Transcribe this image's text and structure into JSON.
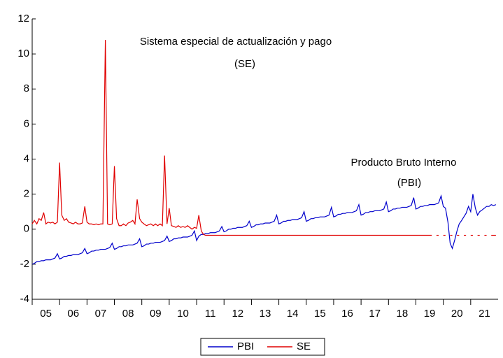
{
  "chart_data": {
    "type": "line",
    "annotations": [
      "Sistema especial de actualización y pago",
      "(SE)",
      "Producto Bruto Interno",
      "(PBI)"
    ],
    "x": [
      2005,
      2005.08,
      2005.17,
      2005.25,
      2005.33,
      2005.42,
      2005.5,
      2005.58,
      2005.67,
      2005.75,
      2005.83,
      2005.92,
      2006,
      2006.08,
      2006.17,
      2006.25,
      2006.33,
      2006.42,
      2006.5,
      2006.58,
      2006.67,
      2006.75,
      2006.83,
      2006.92,
      2007,
      2007.08,
      2007.17,
      2007.25,
      2007.33,
      2007.42,
      2007.5,
      2007.58,
      2007.67,
      2007.75,
      2007.83,
      2007.92,
      2008,
      2008.08,
      2008.17,
      2008.25,
      2008.33,
      2008.42,
      2008.5,
      2008.58,
      2008.67,
      2008.75,
      2008.83,
      2008.92,
      2009,
      2009.08,
      2009.17,
      2009.25,
      2009.33,
      2009.42,
      2009.5,
      2009.58,
      2009.67,
      2009.75,
      2009.83,
      2009.92,
      2010,
      2010.08,
      2010.17,
      2010.25,
      2010.33,
      2010.42,
      2010.5,
      2010.58,
      2010.67,
      2010.75,
      2010.83,
      2010.92,
      2011,
      2011.08,
      2011.17,
      2011.25,
      2011.33,
      2011.42,
      2011.5,
      2011.58,
      2011.67,
      2011.75,
      2011.83,
      2011.92,
      2012,
      2012.08,
      2012.17,
      2012.25,
      2012.33,
      2012.42,
      2012.5,
      2012.58,
      2012.67,
      2012.75,
      2012.83,
      2012.92,
      2013,
      2013.08,
      2013.17,
      2013.25,
      2013.33,
      2013.42,
      2013.5,
      2013.58,
      2013.67,
      2013.75,
      2013.83,
      2013.92,
      2014,
      2014.08,
      2014.17,
      2014.25,
      2014.33,
      2014.42,
      2014.5,
      2014.58,
      2014.67,
      2014.75,
      2014.83,
      2014.92,
      2015,
      2015.08,
      2015.17,
      2015.25,
      2015.33,
      2015.42,
      2015.5,
      2015.58,
      2015.67,
      2015.75,
      2015.83,
      2015.92,
      2016,
      2016.08,
      2016.17,
      2016.25,
      2016.33,
      2016.42,
      2016.5,
      2016.58,
      2016.67,
      2016.75,
      2016.83,
      2016.92,
      2017,
      2017.08,
      2017.17,
      2017.25,
      2017.33,
      2017.42,
      2017.5,
      2017.58,
      2017.67,
      2017.75,
      2017.83,
      2017.92,
      2018,
      2018.08,
      2018.17,
      2018.25,
      2018.33,
      2018.42,
      2018.5,
      2018.58,
      2018.67,
      2018.75,
      2018.83,
      2018.92,
      2019,
      2019.08,
      2019.17,
      2019.25,
      2019.33,
      2019.42,
      2019.5,
      2019.58,
      2019.67,
      2019.75,
      2019.83,
      2019.92,
      2020,
      2020.08,
      2020.17,
      2020.25,
      2020.33,
      2020.42,
      2020.5,
      2020.58,
      2020.67,
      2020.75,
      2020.83,
      2020.92,
      2021,
      2021.08,
      2021.17,
      2021.25,
      2021.33,
      2021.42,
      2021.5,
      2021.58,
      2021.67,
      2021.75,
      2021.83,
      2021.92
    ],
    "series": [
      {
        "name": "PBI",
        "color": "#0000cc",
        "values": [
          -2.0,
          -1.95,
          -1.85,
          -1.85,
          -1.8,
          -1.8,
          -1.75,
          -1.75,
          -1.75,
          -1.7,
          -1.65,
          -1.4,
          -1.7,
          -1.65,
          -1.55,
          -1.55,
          -1.5,
          -1.5,
          -1.45,
          -1.45,
          -1.45,
          -1.4,
          -1.35,
          -1.1,
          -1.4,
          -1.35,
          -1.25,
          -1.25,
          -1.2,
          -1.2,
          -1.15,
          -1.15,
          -1.15,
          -1.1,
          -1.05,
          -0.8,
          -1.15,
          -1.1,
          -1.0,
          -1.0,
          -0.95,
          -0.95,
          -0.9,
          -0.9,
          -0.9,
          -0.85,
          -0.8,
          -0.55,
          -1.0,
          -0.95,
          -0.85,
          -0.85,
          -0.8,
          -0.8,
          -0.75,
          -0.75,
          -0.75,
          -0.7,
          -0.65,
          -0.4,
          -0.7,
          -0.65,
          -0.55,
          -0.55,
          -0.5,
          -0.5,
          -0.45,
          -0.45,
          -0.45,
          -0.4,
          -0.35,
          -0.1,
          -0.65,
          -0.4,
          -0.3,
          -0.3,
          -0.25,
          -0.25,
          -0.2,
          -0.2,
          -0.2,
          -0.15,
          -0.1,
          0.15,
          -0.15,
          -0.1,
          0,
          0,
          0.05,
          0.05,
          0.1,
          0.1,
          0.1,
          0.15,
          0.2,
          0.45,
          0.1,
          0.15,
          0.25,
          0.25,
          0.3,
          0.3,
          0.35,
          0.35,
          0.35,
          0.4,
          0.45,
          0.8,
          0.3,
          0.35,
          0.45,
          0.45,
          0.5,
          0.5,
          0.55,
          0.55,
          0.55,
          0.6,
          0.65,
          1.0,
          0.45,
          0.5,
          0.6,
          0.6,
          0.65,
          0.65,
          0.7,
          0.7,
          0.7,
          0.75,
          0.8,
          1.25,
          0.7,
          0.75,
          0.85,
          0.85,
          0.9,
          0.9,
          0.95,
          0.95,
          0.95,
          1.0,
          1.05,
          1.4,
          0.8,
          0.85,
          0.95,
          0.95,
          1.0,
          1.0,
          1.05,
          1.05,
          1.05,
          1.1,
          1.15,
          1.55,
          1.0,
          1.05,
          1.15,
          1.15,
          1.2,
          1.2,
          1.25,
          1.25,
          1.25,
          1.3,
          1.35,
          1.8,
          1.15,
          1.2,
          1.3,
          1.3,
          1.35,
          1.35,
          1.4,
          1.4,
          1.4,
          1.45,
          1.5,
          1.9,
          1.3,
          1.2,
          0.4,
          -0.8,
          -1.1,
          -0.6,
          -0.1,
          0.3,
          0.5,
          0.7,
          0.9,
          1.3,
          1.0,
          2.0,
          1.2,
          0.8,
          1.0,
          1.1,
          1.2,
          1.3,
          1.3,
          1.4,
          1.35,
          1.4
        ]
      },
      {
        "name": "SE",
        "color": "#e00000",
        "values": [
          0.3,
          0.5,
          0.3,
          0.6,
          0.5,
          0.95,
          0.3,
          0.4,
          0.35,
          0.4,
          0.3,
          0.4,
          3.8,
          0.8,
          0.5,
          0.6,
          0.4,
          0.35,
          0.3,
          0.4,
          0.3,
          0.3,
          0.35,
          1.3,
          0.4,
          0.3,
          0.3,
          0.25,
          0.3,
          0.25,
          0.3,
          0.3,
          10.8,
          0.3,
          0.25,
          0.3,
          3.6,
          0.6,
          0.2,
          0.2,
          0.3,
          0.2,
          0.35,
          0.4,
          0.5,
          0.3,
          1.7,
          0.6,
          0.4,
          0.3,
          0.2,
          0.25,
          0.3,
          0.2,
          0.3,
          0.2,
          0.3,
          0.2,
          4.2,
          0.3,
          1.2,
          0.2,
          0.15,
          0.1,
          0.2,
          0.1,
          0.15,
          0.1,
          0.2,
          0.1,
          0.0,
          0.1,
          0.05,
          0.8,
          -0.1,
          -0.3,
          -0.35,
          -0.35,
          -0.35,
          -0.35,
          -0.35,
          -0.35,
          -0.35,
          -0.35,
          -0.35,
          -0.35,
          -0.35,
          -0.35,
          -0.35,
          -0.35,
          -0.35,
          -0.35,
          -0.35,
          -0.35,
          -0.35,
          -0.35,
          -0.35,
          -0.35,
          -0.35,
          -0.35,
          -0.35,
          -0.35,
          -0.35,
          -0.35,
          -0.35,
          -0.35,
          -0.35,
          -0.35,
          -0.35,
          -0.35,
          -0.35,
          -0.35,
          -0.35,
          -0.35,
          -0.35,
          -0.35,
          -0.35,
          -0.35,
          -0.35,
          -0.35,
          -0.35,
          -0.35,
          -0.35,
          -0.35,
          -0.35,
          -0.35,
          -0.35,
          -0.35,
          -0.35,
          -0.35,
          -0.35,
          -0.35,
          -0.35,
          -0.35,
          -0.35,
          -0.35,
          -0.35,
          -0.35,
          -0.35,
          -0.35,
          -0.35,
          -0.35,
          -0.35,
          -0.35,
          -0.35,
          -0.35,
          -0.35,
          -0.35,
          -0.35,
          -0.35,
          -0.35,
          -0.35,
          -0.35,
          -0.35,
          -0.35,
          -0.35,
          -0.35,
          -0.35,
          -0.35,
          -0.35,
          -0.35,
          -0.35,
          -0.35,
          -0.35,
          -0.35,
          -0.35,
          -0.35,
          -0.35,
          -0.35,
          -0.35,
          -0.35,
          -0.35,
          -0.35,
          -0.35,
          -0.35,
          -0.35,
          null,
          -0.35,
          -0.35,
          null,
          -0.35,
          -0.35,
          null,
          -0.35,
          -0.35,
          null,
          -0.35,
          -0.35,
          null,
          -0.35,
          -0.35,
          null,
          -0.35,
          -0.35,
          null,
          -0.35,
          -0.35,
          null,
          -0.35,
          -0.35,
          null,
          -0.35,
          -0.35,
          -0.35
        ]
      }
    ],
    "xlim": [
      2005,
      2022
    ],
    "xticks": [
      {
        "value": 2005,
        "label": "05"
      },
      {
        "value": 2006,
        "label": "06"
      },
      {
        "value": 2007,
        "label": "07"
      },
      {
        "value": 2008,
        "label": "08"
      },
      {
        "value": 2009,
        "label": "09"
      },
      {
        "value": 2010,
        "label": "10"
      },
      {
        "value": 2011,
        "label": "11"
      },
      {
        "value": 2012,
        "label": "12"
      },
      {
        "value": 2013,
        "label": "13"
      },
      {
        "value": 2014,
        "label": "14"
      },
      {
        "value": 2015,
        "label": "15"
      },
      {
        "value": 2016,
        "label": "16"
      },
      {
        "value": 2017,
        "label": "17"
      },
      {
        "value": 2018,
        "label": "18"
      },
      {
        "value": 2019,
        "label": "19"
      },
      {
        "value": 2020,
        "label": "20"
      },
      {
        "value": 2021,
        "label": "21"
      }
    ],
    "ylim": [
      -4,
      12
    ],
    "yticks": [
      -4,
      -2,
      0,
      2,
      4,
      6,
      8,
      10,
      12
    ],
    "legend": "bottom"
  }
}
